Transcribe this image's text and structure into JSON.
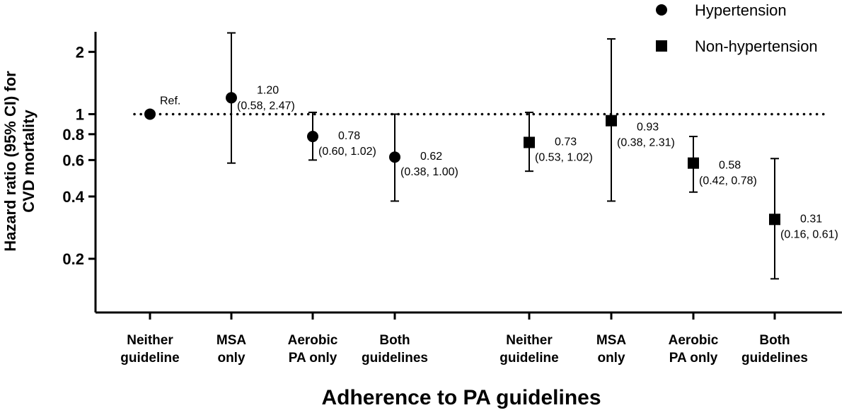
{
  "chart_data": {
    "type": "scatter",
    "ylabel_line1": "Hazard ratio (95% CI) for",
    "ylabel_line2": "CVD mortality",
    "xlabel": "Adherence to PA guidelines",
    "yscale": "log",
    "ylim": [
      0.11,
      2.5
    ],
    "yticks": [
      0.2,
      0.4,
      0.6,
      0.8,
      1,
      2
    ],
    "ytick_labels": [
      "0.2",
      "0.4",
      "0.6",
      "0.8",
      "1",
      "2"
    ],
    "reference_line": 1,
    "categories": [
      [
        "Neither",
        "guideline"
      ],
      [
        "MSA",
        "only"
      ],
      [
        "Aerobic",
        "PA only"
      ],
      [
        "Both",
        "guidelines"
      ]
    ],
    "legend_position": "top-right",
    "series": [
      {
        "name": "Hypertension",
        "marker": "circle",
        "points": [
          {
            "hr": 1.0,
            "lo": 1.0,
            "hi": 1.0,
            "label1": "Ref.",
            "label2": ""
          },
          {
            "hr": 1.2,
            "lo": 0.58,
            "hi": 2.47,
            "label1": "1.20",
            "label2": "(0.58, 2.47)"
          },
          {
            "hr": 0.78,
            "lo": 0.6,
            "hi": 1.02,
            "label1": "0.78",
            "label2": "(0.60, 1.02)"
          },
          {
            "hr": 0.62,
            "lo": 0.38,
            "hi": 1.0,
            "label1": "0.62",
            "label2": "(0.38, 1.00)"
          }
        ]
      },
      {
        "name": "Non-hypertension",
        "marker": "square",
        "points": [
          {
            "hr": 0.73,
            "lo": 0.53,
            "hi": 1.02,
            "label1": "0.73",
            "label2": "(0.53, 1.02)"
          },
          {
            "hr": 0.93,
            "lo": 0.38,
            "hi": 2.31,
            "label1": "0.93",
            "label2": "(0.38, 2.31)"
          },
          {
            "hr": 0.58,
            "lo": 0.42,
            "hi": 0.78,
            "label1": "0.58",
            "label2": "(0.42, 0.78)"
          },
          {
            "hr": 0.31,
            "lo": 0.16,
            "hi": 0.61,
            "label1": "0.31",
            "label2": "(0.16, 0.61)"
          }
        ]
      }
    ]
  }
}
